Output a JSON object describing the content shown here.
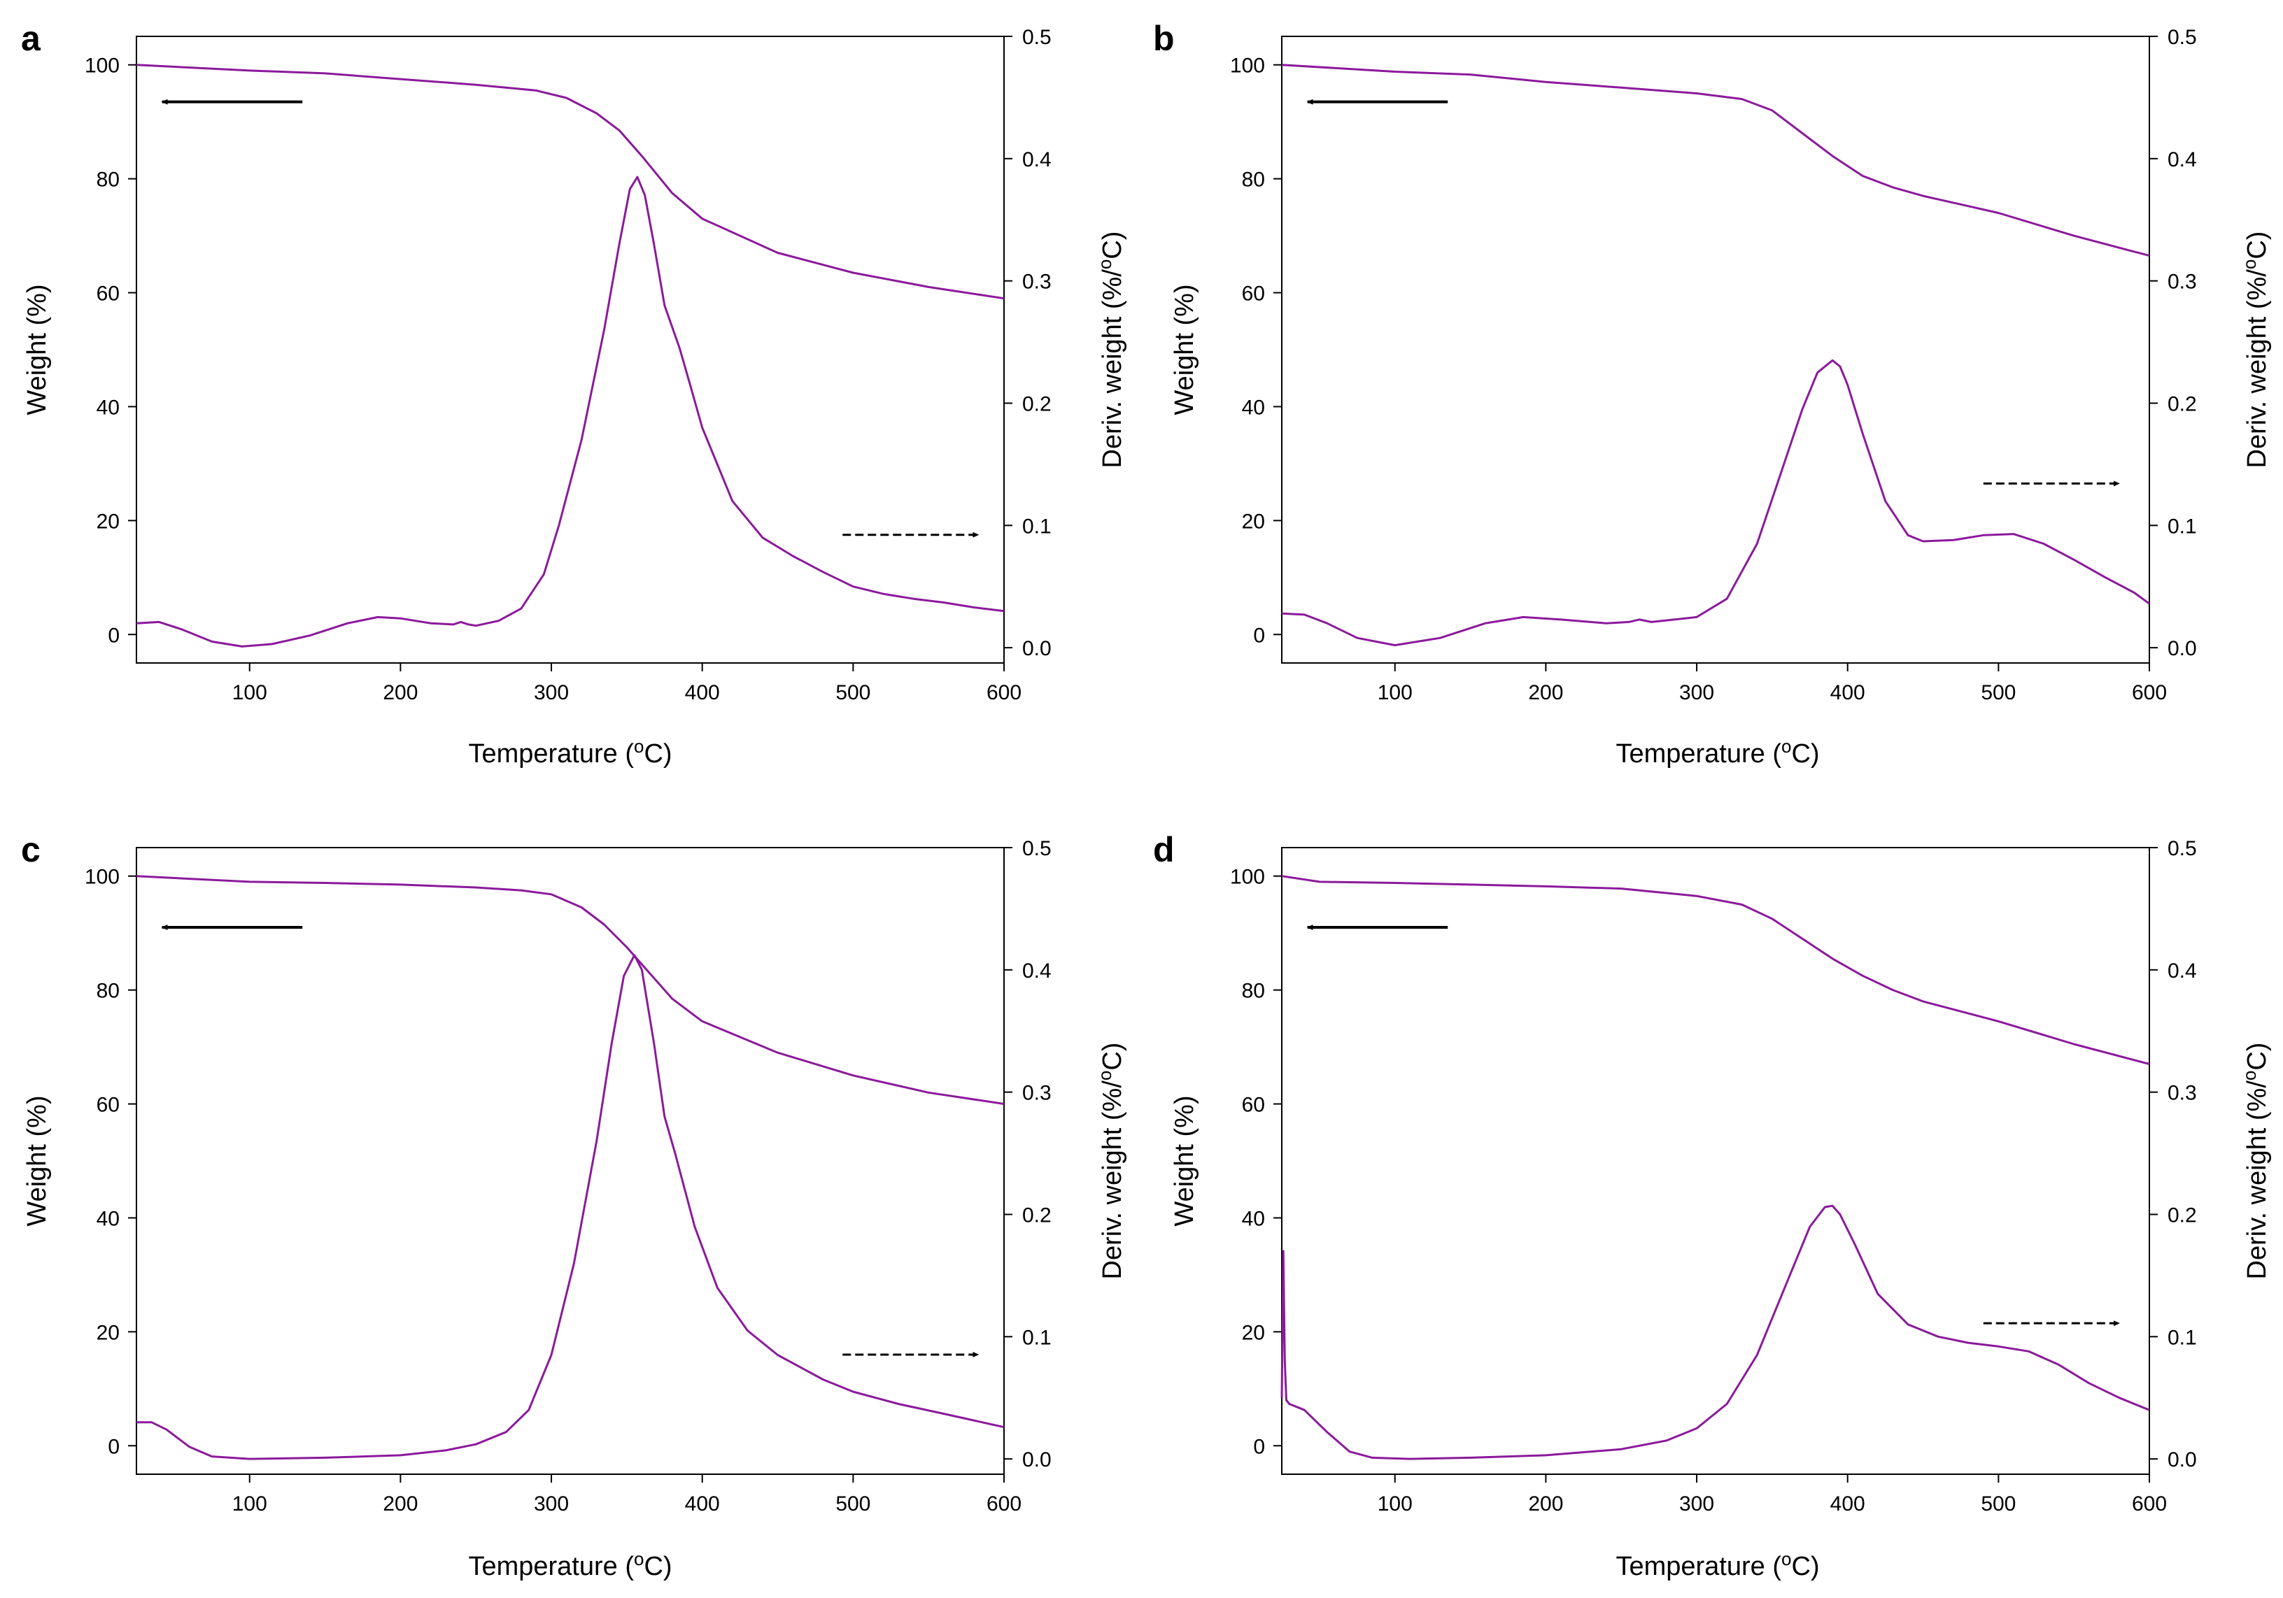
{
  "chart_data": [
    {
      "type": "line",
      "panel_label": "a",
      "xlabel": "Temperature (",
      "xlabel_sup": "o",
      "xlabel_end": "C)",
      "ylabel": "Weight (%)",
      "y2label": "Deriv. weight (%/",
      "y2label_sup": "o",
      "y2label_end": "C)",
      "xlim": [
        25,
        600
      ],
      "ylim": [
        -5,
        105
      ],
      "y2lim": [
        -0.0125,
        0.5
      ],
      "xticks": [
        100,
        200,
        300,
        400,
        500,
        600
      ],
      "yticks": [
        0,
        20,
        40,
        60,
        80,
        100
      ],
      "y2ticks": [
        0.0,
        0.1,
        0.2,
        0.3,
        0.4,
        0.5
      ],
      "line_color": "#8b1a9b",
      "series": [
        {
          "name": "Weight",
          "axis": "left",
          "x": [
            25,
            100,
            150,
            200,
            250,
            290,
            310,
            330,
            345,
            360,
            380,
            400,
            450,
            500,
            550,
            600
          ],
          "y": [
            100,
            99,
            98.5,
            97.5,
            96.5,
            95.5,
            94.2,
            91.5,
            88.5,
            84,
            77.5,
            73,
            67,
            63.5,
            61,
            59
          ]
        },
        {
          "name": "Deriv. weight",
          "axis": "right",
          "x": [
            25,
            40,
            55,
            75,
            95,
            115,
            140,
            165,
            185,
            200,
            220,
            235,
            240,
            245,
            250,
            265,
            280,
            295,
            305,
            320,
            335,
            345,
            352,
            357,
            362,
            368,
            375,
            385,
            392,
            400,
            420,
            440,
            460,
            480,
            500,
            520,
            540,
            560,
            580,
            600
          ],
          "y": [
            0.02,
            0.021,
            0.015,
            0.005,
            0.001,
            0.003,
            0.01,
            0.02,
            0.025,
            0.024,
            0.02,
            0.019,
            0.021,
            0.019,
            0.018,
            0.022,
            0.032,
            0.06,
            0.1,
            0.17,
            0.26,
            0.33,
            0.375,
            0.385,
            0.37,
            0.33,
            0.28,
            0.245,
            0.215,
            0.18,
            0.12,
            0.09,
            0.075,
            0.062,
            0.05,
            0.044,
            0.04,
            0.037,
            0.033,
            0.03
          ]
        }
      ],
      "annotations": [
        {
          "arrow": "solid",
          "direction": "left",
          "from_x": 135,
          "to_x": 42,
          "y": 93.5
        },
        {
          "arrow": "dashed",
          "direction": "right",
          "from_x": 493,
          "to_x": 583,
          "y": 17.5
        }
      ]
    },
    {
      "type": "line",
      "panel_label": "b",
      "xlabel": "Temperature (",
      "xlabel_sup": "o",
      "xlabel_end": "C)",
      "ylabel": "Weight (%)",
      "y2label": "Deriv. weight (%/",
      "y2label_sup": "o",
      "y2label_end": "C)",
      "xlim": [
        25,
        600
      ],
      "ylim": [
        -5,
        105
      ],
      "y2lim": [
        -0.0125,
        0.5
      ],
      "xticks": [
        100,
        200,
        300,
        400,
        500,
        600
      ],
      "yticks": [
        0,
        20,
        40,
        60,
        80,
        100
      ],
      "y2ticks": [
        0.0,
        0.1,
        0.2,
        0.3,
        0.4,
        0.5
      ],
      "line_color": "#8b1a9b",
      "series": [
        {
          "name": "Weight",
          "axis": "left",
          "x": [
            25,
            100,
            150,
            200,
            250,
            300,
            330,
            350,
            370,
            390,
            410,
            430,
            450,
            500,
            550,
            600
          ],
          "y": [
            100,
            98.8,
            98.3,
            97,
            96,
            95,
            94,
            92,
            88,
            84,
            80.5,
            78.5,
            77,
            74,
            70,
            66.5
          ]
        },
        {
          "name": "Deriv. weight",
          "axis": "right",
          "x": [
            25,
            40,
            55,
            75,
            100,
            130,
            160,
            185,
            210,
            240,
            255,
            262,
            270,
            300,
            320,
            340,
            355,
            370,
            380,
            390,
            395,
            400,
            410,
            425,
            440,
            450,
            470,
            490,
            510,
            530,
            550,
            570,
            590,
            600
          ],
          "y": [
            0.028,
            0.027,
            0.02,
            0.008,
            0.002,
            0.008,
            0.02,
            0.025,
            0.023,
            0.02,
            0.021,
            0.023,
            0.021,
            0.025,
            0.04,
            0.085,
            0.14,
            0.195,
            0.225,
            0.235,
            0.23,
            0.215,
            0.175,
            0.12,
            0.092,
            0.087,
            0.088,
            0.092,
            0.093,
            0.085,
            0.072,
            0.058,
            0.045,
            0.036
          ]
        }
      ],
      "annotations": [
        {
          "arrow": "solid",
          "direction": "left",
          "from_x": 135,
          "to_x": 42,
          "y": 93.5
        },
        {
          "arrow": "dashed",
          "direction": "right",
          "from_x": 490,
          "to_x": 580,
          "y": 26.5
        }
      ]
    },
    {
      "type": "line",
      "panel_label": "c",
      "xlabel": "Temperature (",
      "xlabel_sup": "o",
      "xlabel_end": "C)",
      "ylabel": "Weight (%)",
      "y2label": "Deriv. weight (%/",
      "y2label_sup": "o",
      "y2label_end": "C)",
      "xlim": [
        25,
        600
      ],
      "ylim": [
        -5,
        105
      ],
      "y2lim": [
        -0.0125,
        0.5
      ],
      "xticks": [
        100,
        200,
        300,
        400,
        500,
        600
      ],
      "yticks": [
        0,
        20,
        40,
        60,
        80,
        100
      ],
      "y2ticks": [
        0.0,
        0.1,
        0.2,
        0.3,
        0.4,
        0.5
      ],
      "line_color": "#8b1a9b",
      "series": [
        {
          "name": "Weight",
          "axis": "left",
          "x": [
            25,
            100,
            150,
            200,
            250,
            280,
            300,
            320,
            335,
            350,
            365,
            380,
            400,
            450,
            500,
            550,
            600
          ],
          "y": [
            100,
            99,
            98.8,
            98.5,
            98,
            97.5,
            96.8,
            94.5,
            91.5,
            87.5,
            83,
            78.5,
            74.5,
            69,
            65,
            62,
            60
          ]
        },
        {
          "name": "Deriv. weight",
          "axis": "right",
          "x": [
            25,
            35,
            45,
            60,
            75,
            100,
            150,
            200,
            230,
            250,
            270,
            285,
            300,
            315,
            330,
            340,
            348,
            355,
            360,
            368,
            375,
            382,
            395,
            410,
            430,
            450,
            480,
            500,
            530,
            560,
            600
          ],
          "y": [
            0.03,
            0.03,
            0.024,
            0.01,
            0.002,
            0.0,
            0.001,
            0.003,
            0.007,
            0.012,
            0.022,
            0.04,
            0.085,
            0.16,
            0.26,
            0.34,
            0.395,
            0.412,
            0.4,
            0.34,
            0.28,
            0.25,
            0.19,
            0.14,
            0.105,
            0.085,
            0.065,
            0.055,
            0.045,
            0.037,
            0.026
          ]
        }
      ],
      "annotations": [
        {
          "arrow": "solid",
          "direction": "left",
          "from_x": 135,
          "to_x": 42,
          "y": 91
        },
        {
          "arrow": "dashed",
          "direction": "right",
          "from_x": 493,
          "to_x": 583,
          "y": 16
        }
      ]
    },
    {
      "type": "line",
      "panel_label": "d",
      "xlabel": "Temperature (",
      "xlabel_sup": "o",
      "xlabel_end": "C)",
      "ylabel": "Weight (%)",
      "y2label": "Deriv. weight (%/",
      "y2label_sup": "o",
      "y2label_end": "C)",
      "xlim": [
        25,
        600
      ],
      "ylim": [
        -5,
        105
      ],
      "y2lim": [
        -0.0125,
        0.5
      ],
      "xticks": [
        100,
        200,
        300,
        400,
        500,
        600
      ],
      "yticks": [
        0,
        20,
        40,
        60,
        80,
        100
      ],
      "y2ticks": [
        0.0,
        0.1,
        0.2,
        0.3,
        0.4,
        0.5
      ],
      "line_color": "#8b1a9b",
      "series": [
        {
          "name": "Weight",
          "axis": "left",
          "x": [
            25,
            50,
            100,
            150,
            200,
            250,
            300,
            330,
            350,
            370,
            390,
            410,
            430,
            450,
            500,
            550,
            600
          ],
          "y": [
            100,
            99,
            98.8,
            98.5,
            98.2,
            97.8,
            96.5,
            95,
            92.5,
            89,
            85.5,
            82.5,
            80,
            78,
            74.5,
            70.5,
            67
          ]
        },
        {
          "name": "Deriv. weight",
          "axis": "right",
          "x": [
            25,
            26,
            27,
            28,
            30,
            40,
            55,
            70,
            85,
            110,
            150,
            200,
            250,
            280,
            300,
            320,
            340,
            360,
            375,
            385,
            390,
            395,
            405,
            420,
            440,
            460,
            480,
            500,
            520,
            540,
            560,
            580,
            600
          ],
          "y": [
            0.05,
            0.17,
            0.08,
            0.048,
            0.045,
            0.04,
            0.022,
            0.006,
            0.001,
            0.0,
            0.001,
            0.003,
            0.008,
            0.015,
            0.025,
            0.045,
            0.085,
            0.145,
            0.19,
            0.206,
            0.207,
            0.2,
            0.175,
            0.135,
            0.11,
            0.1,
            0.095,
            0.092,
            0.088,
            0.077,
            0.062,
            0.05,
            0.04
          ]
        }
      ],
      "annotations": [
        {
          "arrow": "solid",
          "direction": "left",
          "from_x": 135,
          "to_x": 42,
          "y": 91
        },
        {
          "arrow": "dashed",
          "direction": "right",
          "from_x": 490,
          "to_x": 580,
          "y": 21.5
        }
      ]
    }
  ]
}
